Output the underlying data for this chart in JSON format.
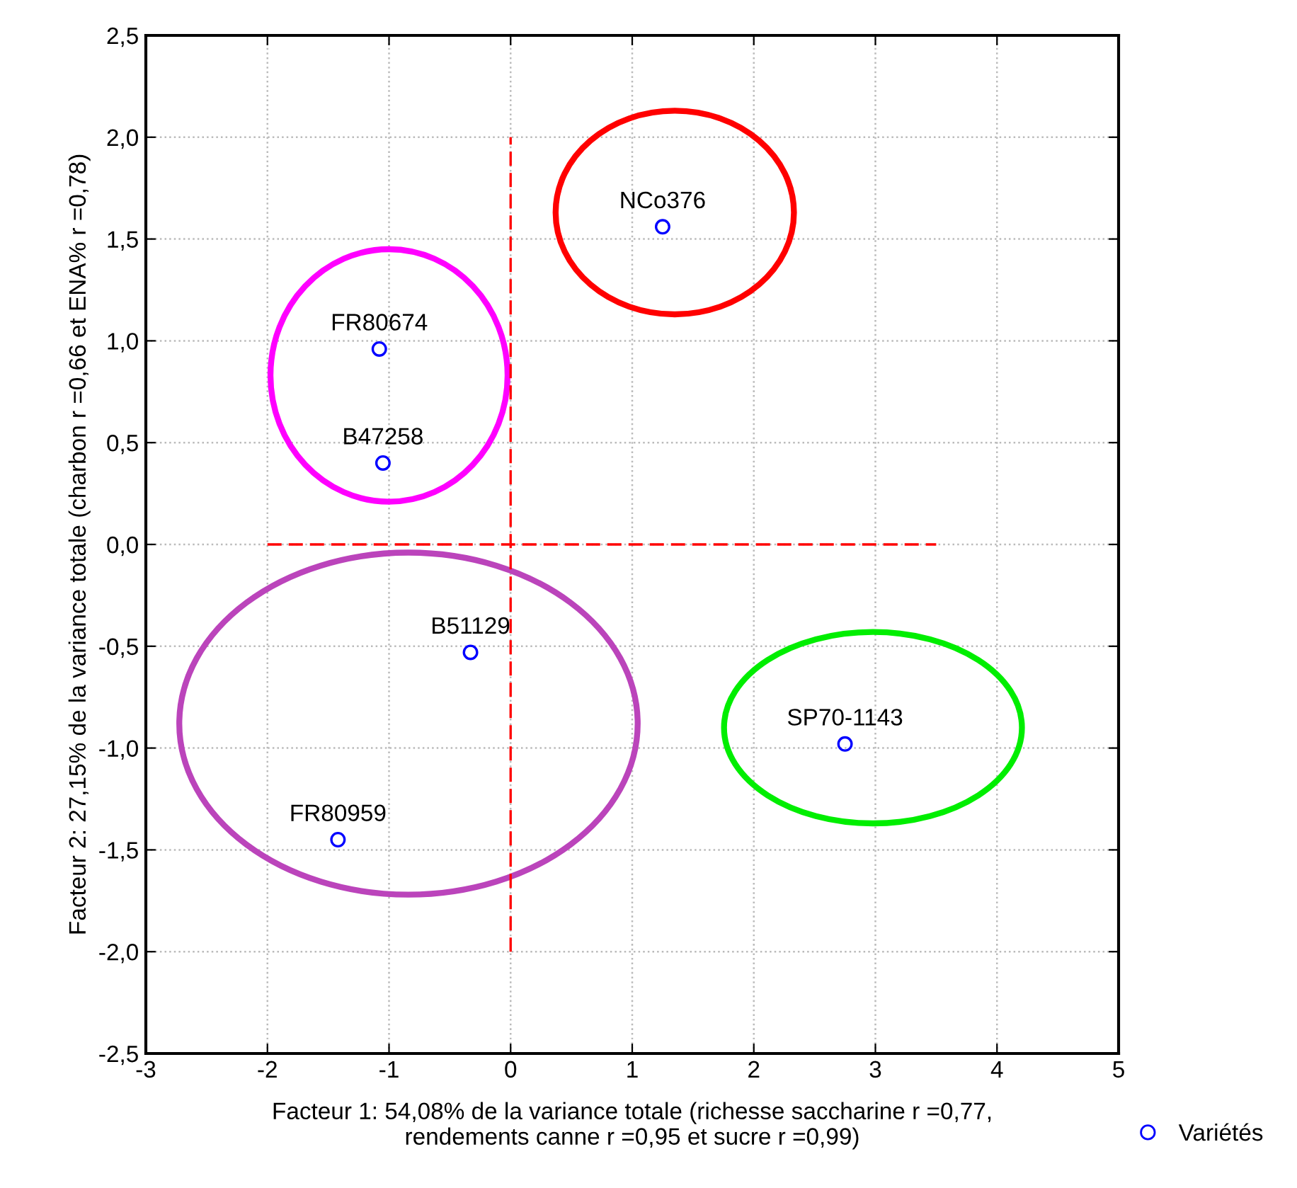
{
  "chart_data": {
    "type": "scatter",
    "xlabel": "Facteur 1: 54,08% de la variance totale (richesse saccharine r =0,77,\nrendements canne r =0,95 et sucre r =0,99)",
    "ylabel": "Facteur 2: 27,15% de la variance totale (charbon r =0,66 et ENA% r =0,78)",
    "series": [
      {
        "name": "Variétés",
        "color": "#0000ff",
        "x": [
          1.25,
          -1.08,
          -1.05,
          -0.33,
          2.75,
          -1.42
        ],
        "values": [
          1.56,
          0.96,
          0.4,
          -0.53,
          -0.98,
          -1.45
        ]
      }
    ],
    "annotations": [
      {
        "text": "NCo376",
        "x": 1.25,
        "y": 1.56
      },
      {
        "text": "FR80674",
        "x": -1.08,
        "y": 0.96
      },
      {
        "text": "B47258",
        "x": -1.05,
        "y": 0.4
      },
      {
        "text": "B51129",
        "x": -0.33,
        "y": -0.53
      },
      {
        "text": "SP70-1143",
        "x": 2.75,
        "y": -0.98
      },
      {
        "text": "FR80959",
        "x": -1.42,
        "y": -1.45
      }
    ],
    "ref_lines": [
      {
        "axis": "x",
        "value": 0,
        "color": "#ff0000",
        "line_style": "dashed"
      },
      {
        "axis": "y",
        "value": 0,
        "color": "#ff0000",
        "line_style": "dashed"
      }
    ],
    "xlim": [
      -3,
      5
    ],
    "xticks": [
      -3,
      -2,
      -1,
      0,
      1,
      2,
      3,
      4,
      5
    ],
    "ylim": [
      -2.5,
      2.5
    ],
    "yticks": [
      {
        "value": -2.5,
        "label": "-2,5"
      },
      {
        "value": -2.0,
        "label": "-2,0"
      },
      {
        "value": -1.5,
        "label": "-1,5"
      },
      {
        "value": -1.0,
        "label": "-1,0"
      },
      {
        "value": -0.5,
        "label": "-0,5"
      },
      {
        "value": 0.0,
        "label": "0,0"
      },
      {
        "value": 0.5,
        "label": "0,5"
      },
      {
        "value": 1.0,
        "label": "1,0"
      },
      {
        "value": 1.5,
        "label": "1,5"
      },
      {
        "value": 2.0,
        "label": "2,0"
      },
      {
        "value": 2.5,
        "label": "2,5"
      }
    ],
    "grid": true,
    "legend": "bottom right",
    "marker": "circle"
  }
}
